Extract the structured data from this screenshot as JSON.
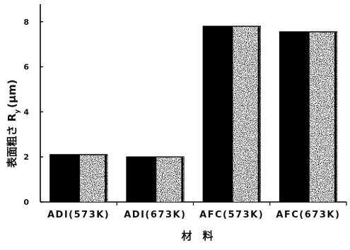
{
  "chart_data": {
    "type": "bar",
    "categories": [
      "ADI(573K)",
      "ADI(673K)",
      "AFC(573K)",
      "AFC(673K)"
    ],
    "values": [
      2.1,
      2.0,
      7.8,
      7.55
    ],
    "yticks": [
      "0",
      "2",
      "4",
      "6",
      "8"
    ],
    "ylim": [
      0,
      8.4
    ],
    "xlabel": "材　料",
    "ylabel_main": "表面粗さ R",
    "ylabel_sub": "y",
    "ylabel_unit": "(μm)",
    "grid": false,
    "legend": "none",
    "colors": {
      "solid": "#000000",
      "speckle_dark": "#1a1a1a",
      "speckle_light": "#ffffff",
      "axis": "#000000"
    }
  }
}
